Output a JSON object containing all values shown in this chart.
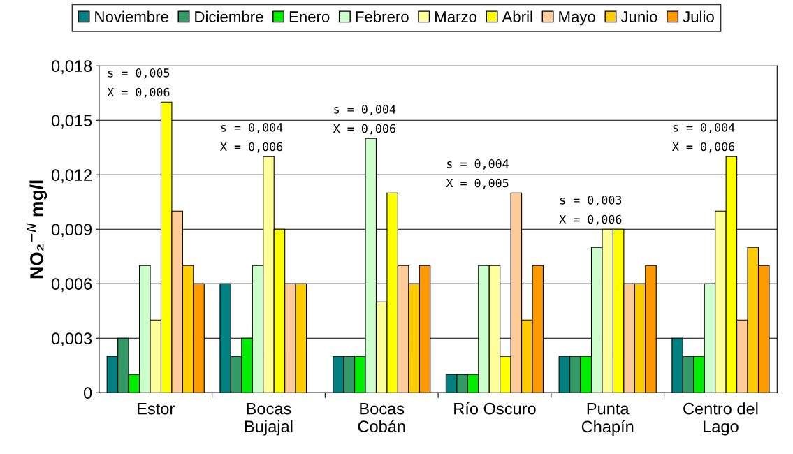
{
  "chart_data": {
    "type": "bar",
    "ylabel": "NO₂$^{−N}$ mg/l",
    "categories": [
      "Estor",
      "Bocas\nBujajal",
      "Bocas\nCobán",
      "Río Oscuro",
      "Punta\nChapín",
      "Centro del\nLago"
    ],
    "series": [
      {
        "name": "Noviembre",
        "color": "#008080",
        "values": [
          0.002,
          0.006,
          0.002,
          0.001,
          0.002,
          0.003
        ]
      },
      {
        "name": "Diciembre",
        "color": "#339966",
        "values": [
          0.003,
          0.002,
          0.002,
          0.001,
          0.002,
          0.002
        ]
      },
      {
        "name": "Enero",
        "color": "#00ee00",
        "values": [
          0.001,
          0.003,
          0.002,
          0.001,
          0.002,
          0.002
        ]
      },
      {
        "name": "Febrero",
        "color": "#ccffcc",
        "values": [
          0.007,
          0.007,
          0.014,
          0.007,
          0.008,
          0.006
        ]
      },
      {
        "name": "Marzo",
        "color": "#ffff99",
        "values": [
          0.004,
          0.013,
          0.005,
          0.007,
          0.009,
          0.01
        ]
      },
      {
        "name": "Abril",
        "color": "#ffff00",
        "values": [
          0.016,
          0.009,
          0.011,
          0.002,
          0.009,
          0.013
        ]
      },
      {
        "name": "Mayo",
        "color": "#ffcc99",
        "values": [
          0.01,
          0.006,
          0.007,
          0.011,
          0.006,
          0.004
        ]
      },
      {
        "name": "Junio",
        "color": "#ffcc00",
        "values": [
          0.007,
          0.006,
          0.006,
          0.004,
          0.006,
          0.008
        ]
      },
      {
        "name": "Julio",
        "color": "#ff9900",
        "values": [
          0.006,
          null,
          0.007,
          0.007,
          0.007,
          0.007
        ]
      }
    ],
    "ylim": [
      0,
      0.018
    ],
    "yticks": [
      0,
      {
        "value": 0.003,
        "label": "0,003"
      },
      {
        "value": 0.006,
        "label": "0,006"
      },
      {
        "value": 0.009,
        "label": "0,009"
      },
      {
        "value": 0.012,
        "label": "0,012"
      },
      {
        "value": 0.015,
        "label": "0,015"
      },
      {
        "value": 0.018,
        "label": "0,018"
      }
    ],
    "grid": "y",
    "legend": "top",
    "annotations": [
      "s = 0,005\nX = 0,006",
      "s = 0,004\nX = 0,006",
      "s = 0,004\nX = 0,006",
      "s = 0,004\nX = 0,005",
      "s = 0,003\nX = 0,006",
      "s = 0,004\nX = 0,006"
    ]
  }
}
